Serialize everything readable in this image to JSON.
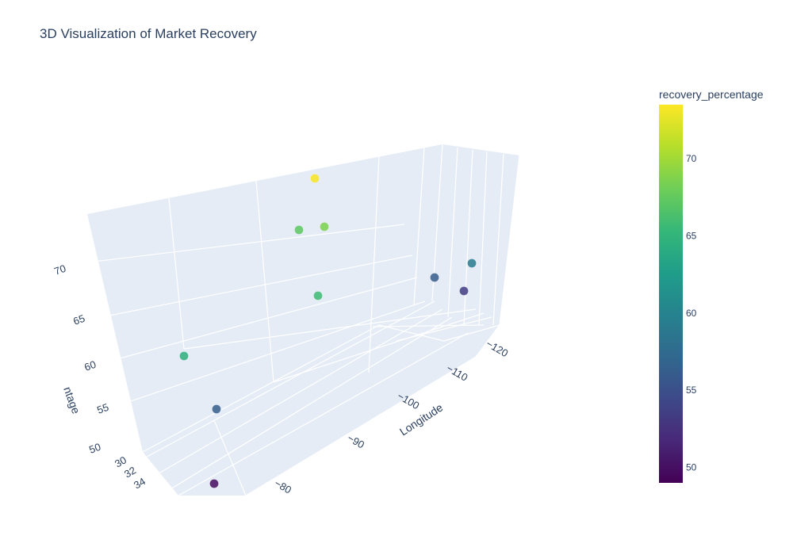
{
  "chart_data": {
    "type": "scatter3d",
    "title": "3D Visualization of Market Recovery",
    "axes": {
      "x": {
        "label": "Longitude",
        "ticks": [
          "−120",
          "−110",
          "−100",
          "−90",
          "−80"
        ]
      },
      "y": {
        "label": "",
        "ticks": [
          "30",
          "32",
          "34"
        ]
      },
      "z": {
        "label": "recovery_percentage",
        "ticks": [
          "50",
          "55",
          "60",
          "65",
          "70"
        ]
      }
    },
    "colorbar": {
      "title": "recovery_percentage",
      "ticks": [
        "50",
        "55",
        "60",
        "65",
        "70"
      ],
      "range": [
        49,
        73.5
      ],
      "colorscale": "Viridis"
    },
    "points": [
      {
        "value": 73.3
      },
      {
        "value": 67.2
      },
      {
        "value": 68.6
      },
      {
        "value": 65.8
      },
      {
        "value": 64.5
      },
      {
        "value": 56.2
      },
      {
        "value": 49.8
      },
      {
        "value": 59.3
      },
      {
        "value": 56.1
      },
      {
        "value": 53.4
      }
    ]
  }
}
